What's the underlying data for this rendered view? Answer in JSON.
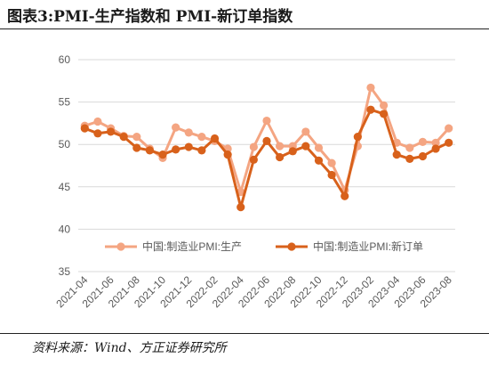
{
  "figure": {
    "title": "图表3:PMI-生产指数和 PMI-新订单指数",
    "source": "资料来源：Wind、方正证券研究所"
  },
  "colors": {
    "production": "#f4a582",
    "new_orders": "#d8611b",
    "axis": "#d9d9d9",
    "text": "#595959"
  },
  "chart_data": {
    "type": "line",
    "ylim": [
      35,
      60
    ],
    "y_ticks": [
      35,
      40,
      45,
      50,
      55,
      60
    ],
    "x": [
      "2021-04",
      "2021-05",
      "2021-06",
      "2021-07",
      "2021-08",
      "2021-09",
      "2021-10",
      "2021-11",
      "2021-12",
      "2022-01",
      "2022-02",
      "2022-03",
      "2022-04",
      "2022-05",
      "2022-06",
      "2022-07",
      "2022-08",
      "2022-09",
      "2022-10",
      "2022-11",
      "2022-12",
      "2023-01",
      "2023-02",
      "2023-03",
      "2023-04",
      "2023-05",
      "2023-06",
      "2023-07",
      "2023-08"
    ],
    "x_tick_labels": [
      "2021-04",
      "2021-06",
      "2021-08",
      "2021-10",
      "2021-12",
      "2022-02",
      "2022-04",
      "2022-06",
      "2022-08",
      "2022-10",
      "2022-12",
      "2023-02",
      "2023-04",
      "2023-06",
      "2023-08"
    ],
    "series": [
      {
        "name": "中国:制造业PMI:生产",
        "values": [
          52.2,
          52.7,
          51.9,
          51.0,
          50.9,
          49.5,
          48.4,
          52.0,
          51.4,
          50.9,
          50.4,
          49.5,
          44.4,
          49.7,
          52.8,
          49.8,
          49.8,
          51.5,
          49.6,
          47.8,
          44.6,
          49.8,
          56.7,
          54.6,
          50.2,
          49.6,
          50.3,
          50.2,
          51.9
        ]
      },
      {
        "name": "中国:制造业PMI:新订单",
        "values": [
          51.9,
          51.3,
          51.5,
          50.9,
          49.6,
          49.3,
          48.8,
          49.4,
          49.7,
          49.3,
          50.7,
          48.8,
          42.6,
          48.2,
          50.4,
          48.5,
          49.2,
          49.8,
          48.1,
          46.4,
          43.9,
          50.9,
          54.1,
          53.6,
          48.8,
          48.3,
          48.6,
          49.5,
          50.2
        ]
      }
    ]
  }
}
